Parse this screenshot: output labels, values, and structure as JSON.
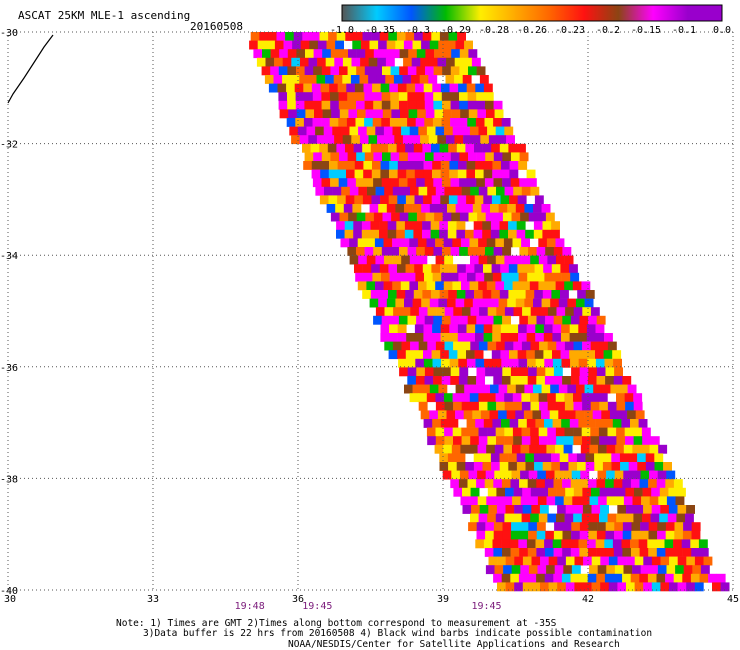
{
  "title": "ASCAT 25KM MLE-1 ascending",
  "date": "20160508",
  "chart_data": {
    "type": "heatmap",
    "title": "ASCAT 25KM MLE-1 ascending",
    "xlim": [
      30,
      45
    ],
    "ylim": [
      -40,
      -30
    ],
    "x_ticks": [
      "30",
      "33",
      "36",
      "39",
      "42",
      "45"
    ],
    "y_ticks": [
      "-30",
      "-32",
      "-34",
      "-36",
      "-38",
      "-40"
    ],
    "grid": true,
    "colorbar": {
      "labels": [
        "-1.0",
        "-0.35",
        "-0.3",
        "-0.29",
        "-0.28",
        "-0.26",
        "-0.23",
        "-0.2",
        "-0.15",
        "-0.1",
        "0.0"
      ],
      "colors": [
        "#555555",
        "#00ccff",
        "#0055ff",
        "#00bb00",
        "#ffee00",
        "#ffaa00",
        "#ff6600",
        "#ff1111",
        "#8b4513",
        "#ff00ff",
        "#9900cc"
      ]
    },
    "swath_corners": [
      [
        34.95,
        -30
      ],
      [
        39.5,
        -30
      ],
      [
        44.9,
        -40
      ],
      [
        40.2,
        -40
      ]
    ],
    "swath_palette": [
      "#ff00ff",
      "#9900cc",
      "#ff1111",
      "#ff6600",
      "#ffaa00",
      "#ffee00",
      "#8b4513",
      "#00bb00",
      "#0055ff",
      "#00ccff"
    ],
    "swath_weights": [
      18,
      16,
      16,
      12,
      11,
      10,
      7,
      4,
      3,
      3
    ],
    "times": [
      "19:48",
      "19:45",
      "19:45"
    ],
    "time_x_positions": [
      35.0,
      36.4,
      39.9
    ]
  },
  "notes": [
    "Note: 1) Times are GMT 2)Times along bottom correspond to measurement at -35S",
    "3)Data buffer is 22 hrs from 20160508 4) Black wind barbs indicate possible contamination",
    "NOAA/NESDIS/Center for Satellite Applications and Research"
  ]
}
